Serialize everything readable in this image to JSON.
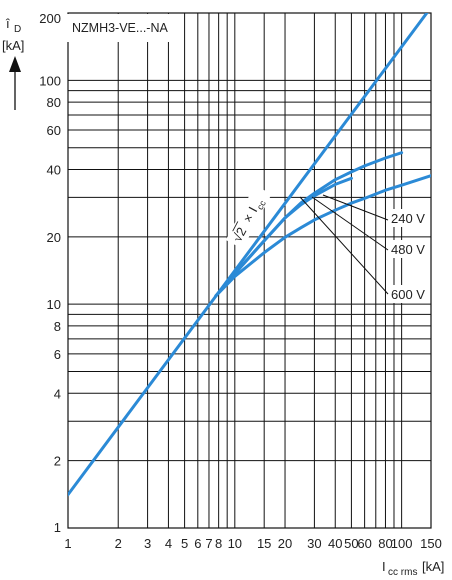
{
  "chart_data": {
    "type": "line",
    "title": "NZMH3-VE...-NA",
    "xlabel": {
      "main": "I",
      "sub": "cc rms",
      "unit": "[kA]"
    },
    "ylabel": {
      "main": "î",
      "sub": "D",
      "unit": "[kA]"
    },
    "x_scale": "log",
    "y_scale": "log",
    "xlim": [
      1,
      150
    ],
    "ylim": [
      1,
      200
    ],
    "grid": true,
    "x_ticks": [
      1,
      2,
      3,
      4,
      5,
      6,
      7,
      8,
      10,
      15,
      20,
      30,
      40,
      50,
      60,
      80,
      100,
      150
    ],
    "x_tick_labels": [
      "1",
      "2",
      "3",
      "4",
      "5",
      "6",
      "7",
      "8",
      "10",
      "15",
      "20",
      "30",
      "40",
      "50",
      "60",
      "80",
      "100",
      "150"
    ],
    "y_ticks": [
      1,
      2,
      4,
      6,
      8,
      10,
      20,
      40,
      60,
      80,
      100,
      200
    ],
    "y_tick_labels": [
      "1",
      "2",
      "4",
      "6",
      "8",
      "10",
      "20",
      "40",
      "60",
      "80",
      "100",
      "200"
    ],
    "x_grid": [
      1,
      2,
      3,
      4,
      5,
      6,
      7,
      8,
      9,
      10,
      15,
      20,
      30,
      40,
      50,
      60,
      70,
      80,
      90,
      100,
      150
    ],
    "y_grid": [
      1,
      2,
      3,
      4,
      5,
      6,
      7,
      8,
      9,
      10,
      20,
      30,
      40,
      50,
      60,
      70,
      80,
      90,
      100,
      200
    ],
    "series": [
      {
        "name": "√2 × I_cc",
        "x": [
          1,
          150
        ],
        "y": [
          1.41,
          212
        ]
      },
      {
        "name": "240 V",
        "x": [
          7.7,
          10,
          15,
          20,
          25,
          30,
          40,
          50,
          60,
          80,
          100
        ],
        "y": [
          10.9,
          13.7,
          19.2,
          24.3,
          28.4,
          31.3,
          36.0,
          39.0,
          41.5,
          45.0,
          47.5
        ]
      },
      {
        "name": "480 V",
        "x": [
          7.7,
          10,
          15,
          20,
          25,
          30,
          40,
          50
        ],
        "y": [
          10.9,
          13.7,
          19.2,
          24.3,
          27.9,
          30.5,
          34.3,
          36.5
        ]
      },
      {
        "name": "600 V",
        "x": [
          7.7,
          10,
          15,
          20,
          25,
          30,
          40,
          50,
          60,
          80,
          100,
          150
        ],
        "y": [
          10.9,
          13.3,
          17.0,
          19.9,
          22.0,
          23.8,
          26.3,
          28.3,
          29.7,
          32.3,
          34.0,
          37.5
        ]
      }
    ],
    "annotations": {
      "formula": {
        "root": "√2",
        "times": "×",
        "main": "I",
        "sub": "cc"
      },
      "v240": "240 V",
      "v480": "480 V",
      "v600": "600 V"
    },
    "line_color": "#2b8ad6",
    "grid_color": "#111111"
  }
}
